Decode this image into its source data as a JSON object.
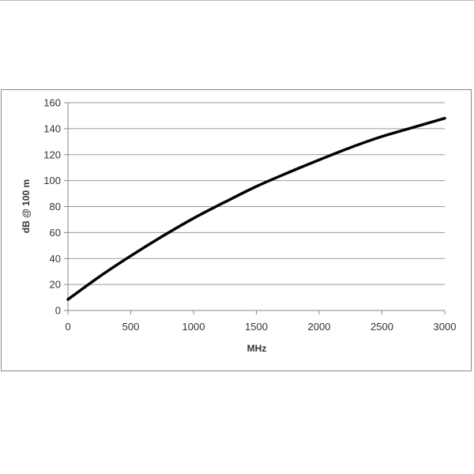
{
  "chart_data": {
    "type": "line",
    "title": "",
    "xlabel": "MHz",
    "ylabel": "dB @ 100 m",
    "xlim": [
      0,
      3000
    ],
    "ylim": [
      0,
      160
    ],
    "xticks": [
      0,
      500,
      1000,
      1500,
      2000,
      2500,
      3000
    ],
    "yticks": [
      0,
      20,
      40,
      60,
      80,
      100,
      120,
      140,
      160
    ],
    "grid": "horizontal",
    "legend": "none",
    "series": [
      {
        "color": "#000000",
        "x": [
          0,
          250,
          500,
          750,
          1000,
          1250,
          1500,
          1750,
          2000,
          2250,
          2500,
          2750,
          3000
        ],
        "y": [
          8.5,
          26,
          42,
          57,
          71,
          83.5,
          95.5,
          106,
          116,
          125.5,
          134,
          141,
          148
        ]
      }
    ]
  }
}
